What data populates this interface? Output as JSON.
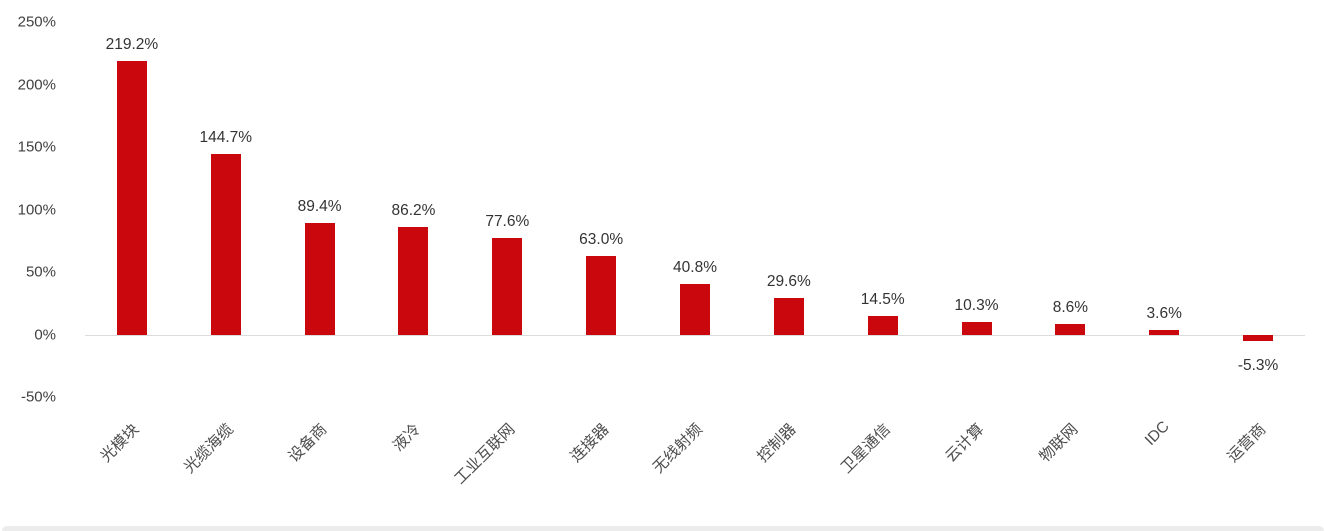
{
  "chart_data": {
    "type": "bar",
    "title": "",
    "xlabel": "",
    "ylabel": "",
    "categories": [
      "光模块",
      "光缆海缆",
      "设备商",
      "液冷",
      "工业互联网",
      "连接器",
      "无线射频",
      "控制器",
      "卫星通信",
      "云计算",
      "物联网",
      "IDC",
      "运营商"
    ],
    "values": [
      219.2,
      144.7,
      89.4,
      86.2,
      77.6,
      63.0,
      40.8,
      29.6,
      14.5,
      10.3,
      8.6,
      3.6,
      -5.3
    ],
    "labels": [
      "219.2%",
      "144.7%",
      "89.4%",
      "86.2%",
      "77.6%",
      "63.0%",
      "40.8%",
      "29.6%",
      "14.5%",
      "10.3%",
      "8.6%",
      "3.6%",
      "-5.3%"
    ],
    "ylim": [
      -50,
      250
    ],
    "yticks": [
      250,
      200,
      150,
      100,
      50,
      0,
      -50
    ],
    "ytick_labels": [
      "250%",
      "200%",
      "150%",
      "100%",
      "50%",
      "0%",
      "-50%"
    ],
    "bar_color": "#c9070c",
    "grid": false,
    "legend": "none"
  }
}
